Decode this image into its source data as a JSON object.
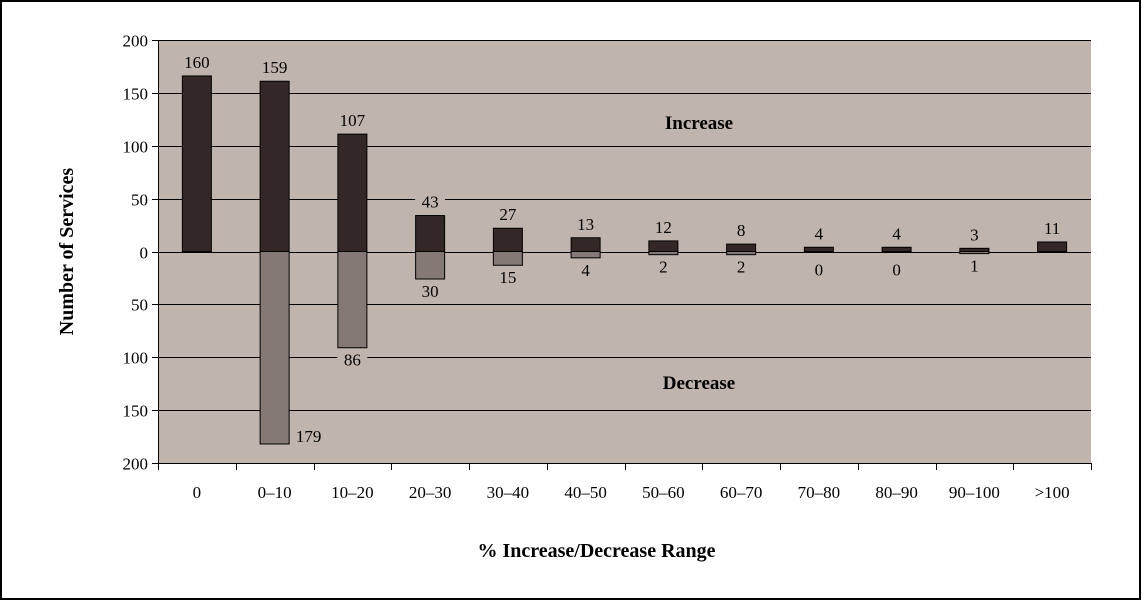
{
  "chart_data": {
    "type": "bar",
    "title": "",
    "xlabel": "% Increase/Decrease Range",
    "ylabel": "Number of Services",
    "categories": [
      "0",
      "0–10",
      "10–20",
      "20–30",
      "30–40",
      "40–50",
      "50–60",
      "60–70",
      "70–80",
      "80–90",
      "90–100",
      ">100"
    ],
    "series": [
      {
        "name": "Increase",
        "direction": "up",
        "color": "#342826",
        "values": [
          160,
          159,
          107,
          43,
          27,
          13,
          12,
          8,
          4,
          4,
          3,
          11
        ]
      },
      {
        "name": "Decrease",
        "direction": "down",
        "color": "#857975",
        "values": [
          0,
          179,
          86,
          30,
          15,
          4,
          2,
          2,
          0,
          0,
          1,
          0
        ]
      }
    ],
    "bar_heights_drawn": {
      "up": [
        166,
        161,
        111,
        34,
        22,
        13,
        10,
        7,
        4,
        4,
        3,
        9
      ],
      "down": [
        0,
        182,
        91,
        26,
        13,
        6,
        3,
        3,
        0,
        0,
        2,
        0
      ]
    },
    "decrease_label_categories": [
      1,
      2,
      3,
      4,
      5,
      6,
      7,
      8,
      9,
      10
    ],
    "ylim": [
      -200,
      200
    ],
    "yticks": [
      200,
      150,
      100,
      50,
      0,
      -50,
      -100,
      -150,
      -200
    ],
    "ytick_labels": [
      "200",
      "150",
      "100",
      "50",
      "0",
      "50",
      "100",
      "150",
      "200"
    ],
    "grid": true,
    "plot_background": "#c0b4ae",
    "annotations": [
      "Increase",
      "Decrease"
    ],
    "legend": "none"
  }
}
